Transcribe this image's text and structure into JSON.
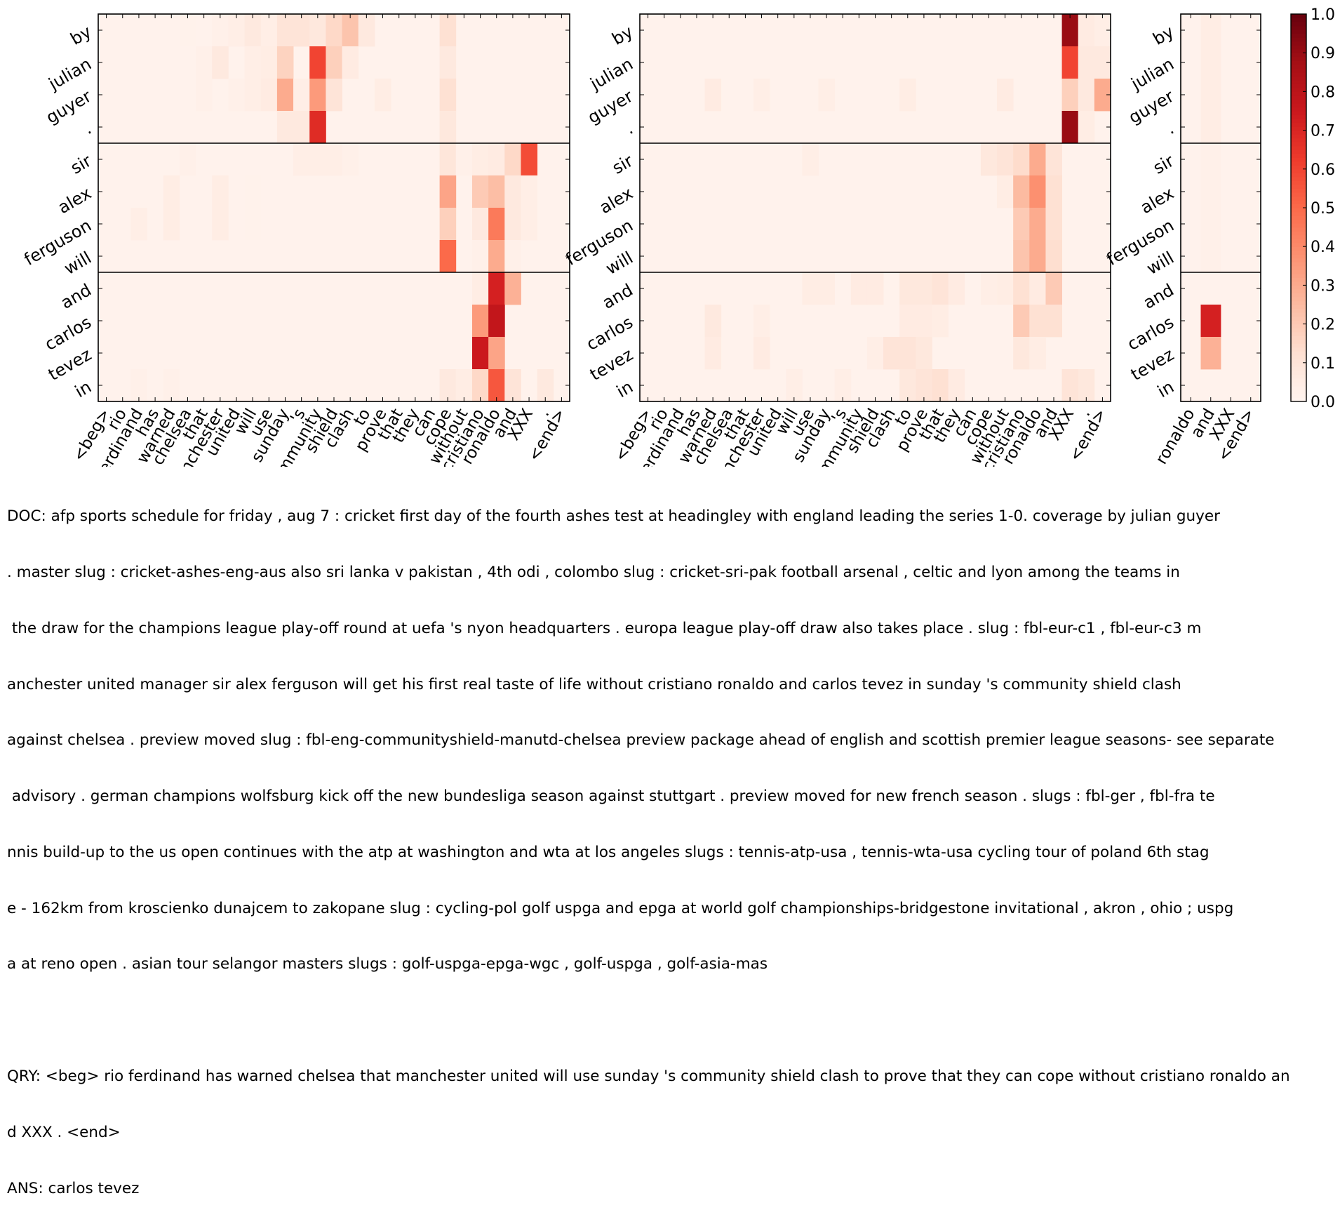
{
  "chart_data": {
    "type": "heatmap",
    "colorbar": {
      "min": 0.0,
      "max": 1.0,
      "ticks": [
        "0.0",
        "0.1",
        "0.2",
        "0.3",
        "0.4",
        "0.5",
        "0.6",
        "0.7",
        "0.8",
        "0.9",
        "1.0"
      ],
      "colormap": "Reds"
    },
    "row_groups": [
      [
        "by",
        "julian",
        "guyer",
        "."
      ],
      [
        "sir",
        "alex",
        "ferguson",
        "will"
      ],
      [
        "and",
        "carlos",
        "tevez",
        "in"
      ]
    ],
    "panels": [
      {
        "columns": [
          "<beg>",
          "rio",
          "ferdinand",
          "has",
          "warned",
          "chelsea",
          "that",
          "manchester",
          "united",
          "will",
          "use",
          "sunday",
          "'s",
          "community",
          "shield",
          "clash",
          "to",
          "prove",
          "that",
          "they",
          "can",
          "cope",
          "without",
          "cristiano",
          "ronaldo",
          "and",
          "XXX",
          ".",
          "<end>"
        ],
        "cells": [
          {
            "r": 0,
            "c": [
              [
                5,
                0.02
              ],
              [
                7,
                0.03
              ],
              [
                8,
                0.04
              ],
              [
                9,
                0.07
              ],
              [
                10,
                0.04
              ],
              [
                11,
                0.1
              ],
              [
                12,
                0.1
              ],
              [
                13,
                0.08
              ],
              [
                14,
                0.15
              ],
              [
                15,
                0.22
              ],
              [
                16,
                0.07
              ],
              [
                21,
                0.12
              ]
            ]
          },
          {
            "r": 1,
            "c": [
              [
                6,
                0.03
              ],
              [
                7,
                0.07
              ],
              [
                9,
                0.04
              ],
              [
                10,
                0.05
              ],
              [
                11,
                0.17
              ],
              [
                13,
                0.6
              ],
              [
                14,
                0.18
              ],
              [
                15,
                0.06
              ],
              [
                21,
                0.07
              ]
            ]
          },
          {
            "r": 2,
            "c": [
              [
                6,
                0.03
              ],
              [
                8,
                0.03
              ],
              [
                9,
                0.04
              ],
              [
                10,
                0.06
              ],
              [
                11,
                0.3
              ],
              [
                12,
                0.04
              ],
              [
                13,
                0.35
              ],
              [
                14,
                0.1
              ],
              [
                17,
                0.05
              ],
              [
                21,
                0.12
              ]
            ]
          },
          {
            "r": 3,
            "c": [
              [
                11,
                0.07
              ],
              [
                12,
                0.07
              ],
              [
                13,
                0.68
              ],
              [
                21,
                0.08
              ]
            ]
          },
          {
            "r": 4,
            "c": [
              [
                5,
                0.03
              ],
              [
                12,
                0.04
              ],
              [
                13,
                0.04
              ],
              [
                14,
                0.04
              ],
              [
                15,
                0.03
              ],
              [
                21,
                0.09
              ],
              [
                22,
                0.03
              ],
              [
                23,
                0.05
              ],
              [
                24,
                0.06
              ],
              [
                25,
                0.15
              ],
              [
                26,
                0.58
              ]
            ]
          },
          {
            "r": 5,
            "c": [
              [
                4,
                0.05
              ],
              [
                7,
                0.05
              ],
              [
                9,
                0.02
              ],
              [
                21,
                0.32
              ],
              [
                23,
                0.2
              ],
              [
                24,
                0.24
              ],
              [
                25,
                0.07
              ],
              [
                26,
                0.04
              ]
            ]
          },
          {
            "r": 6,
            "c": [
              [
                2,
                0.04
              ],
              [
                4,
                0.05
              ],
              [
                7,
                0.05
              ],
              [
                9,
                0.02
              ],
              [
                21,
                0.18
              ],
              [
                23,
                0.07
              ],
              [
                24,
                0.45
              ],
              [
                25,
                0.07
              ],
              [
                26,
                0.04
              ]
            ]
          },
          {
            "r": 7,
            "c": [
              [
                21,
                0.5
              ],
              [
                23,
                0.03
              ],
              [
                24,
                0.3
              ],
              [
                25,
                0.03
              ]
            ]
          },
          {
            "r": 8,
            "c": [
              [
                23,
                0.05
              ],
              [
                24,
                0.72
              ],
              [
                25,
                0.28
              ]
            ]
          },
          {
            "r": 9,
            "c": [
              [
                23,
                0.35
              ],
              [
                24,
                0.78
              ]
            ]
          },
          {
            "r": 10,
            "c": [
              [
                23,
                0.75
              ],
              [
                24,
                0.32
              ]
            ]
          },
          {
            "r": 11,
            "c": [
              [
                2,
                0.03
              ],
              [
                4,
                0.03
              ],
              [
                21,
                0.07
              ],
              [
                22,
                0.05
              ],
              [
                23,
                0.15
              ],
              [
                24,
                0.55
              ],
              [
                25,
                0.1
              ],
              [
                27,
                0.07
              ]
            ]
          }
        ]
      },
      {
        "columns": [
          "<beg>",
          "rio",
          "ferdinand",
          "has",
          "warned",
          "chelsea",
          "that",
          "manchester",
          "united",
          "will",
          "use",
          "sunday",
          "'s",
          "community",
          "shield",
          "clash",
          "to",
          "prove",
          "that",
          "they",
          "can",
          "cope",
          "without",
          "cristiano",
          "ronaldo",
          "and",
          "XXX",
          ".",
          "<end>"
        ],
        "cells": [
          {
            "r": 0,
            "c": [
              [
                26,
                0.9
              ],
              [
                27,
                0.06
              ],
              [
                28,
                0.04
              ]
            ]
          },
          {
            "r": 1,
            "c": [
              [
                26,
                0.6
              ],
              [
                27,
                0.07
              ],
              [
                28,
                0.07
              ]
            ]
          },
          {
            "r": 2,
            "c": [
              [
                4,
                0.06
              ],
              [
                7,
                0.04
              ],
              [
                11,
                0.04
              ],
              [
                16,
                0.05
              ],
              [
                22,
                0.06
              ],
              [
                26,
                0.18
              ],
              [
                27,
                0.07
              ],
              [
                28,
                0.3
              ]
            ]
          },
          {
            "r": 3,
            "c": [
              [
                26,
                0.9
              ],
              [
                27,
                0.05
              ]
            ]
          },
          {
            "r": 4,
            "c": [
              [
                10,
                0.04
              ],
              [
                21,
                0.08
              ],
              [
                22,
                0.1
              ],
              [
                23,
                0.14
              ],
              [
                24,
                0.3
              ],
              [
                25,
                0.1
              ]
            ]
          },
          {
            "r": 5,
            "c": [
              [
                22,
                0.05
              ],
              [
                23,
                0.25
              ],
              [
                24,
                0.38
              ],
              [
                25,
                0.12
              ]
            ]
          },
          {
            "r": 6,
            "c": [
              [
                23,
                0.2
              ],
              [
                24,
                0.3
              ],
              [
                25,
                0.12
              ]
            ]
          },
          {
            "r": 7,
            "c": [
              [
                23,
                0.22
              ],
              [
                24,
                0.3
              ],
              [
                25,
                0.13
              ]
            ]
          },
          {
            "r": 8,
            "c": [
              [
                10,
                0.05
              ],
              [
                11,
                0.05
              ],
              [
                13,
                0.06
              ],
              [
                14,
                0.06
              ],
              [
                16,
                0.08
              ],
              [
                17,
                0.08
              ],
              [
                18,
                0.1
              ],
              [
                19,
                0.06
              ],
              [
                21,
                0.04
              ],
              [
                22,
                0.05
              ],
              [
                23,
                0.12
              ],
              [
                24,
                0.06
              ],
              [
                25,
                0.2
              ]
            ]
          },
          {
            "r": 9,
            "c": [
              [
                4,
                0.07
              ],
              [
                7,
                0.04
              ],
              [
                16,
                0.06
              ],
              [
                17,
                0.06
              ],
              [
                18,
                0.05
              ],
              [
                23,
                0.2
              ],
              [
                24,
                0.12
              ],
              [
                25,
                0.12
              ]
            ]
          },
          {
            "r": 10,
            "c": [
              [
                4,
                0.06
              ],
              [
                7,
                0.06
              ],
              [
                14,
                0.04
              ],
              [
                15,
                0.1
              ],
              [
                16,
                0.1
              ],
              [
                17,
                0.08
              ],
              [
                23,
                0.08
              ],
              [
                24,
                0.05
              ]
            ]
          },
          {
            "r": 11,
            "c": [
              [
                9,
                0.04
              ],
              [
                12,
                0.04
              ],
              [
                16,
                0.08
              ],
              [
                17,
                0.1
              ],
              [
                18,
                0.12
              ],
              [
                19,
                0.06
              ],
              [
                26,
                0.1
              ],
              [
                27,
                0.08
              ]
            ]
          }
        ]
      },
      {
        "columns": [
          "ronaldo",
          "and",
          "XXX",
          "<end>"
        ],
        "cells": [
          {
            "r": 0,
            "c": [
              [
                1,
                0.05
              ]
            ]
          },
          {
            "r": 1,
            "c": [
              [
                1,
                0.05
              ]
            ]
          },
          {
            "r": 2,
            "c": [
              [
                1,
                0.05
              ]
            ]
          },
          {
            "r": 3,
            "c": [
              [
                1,
                0.05
              ]
            ]
          },
          {
            "r": 4,
            "c": [
              [
                1,
                0.03
              ]
            ]
          },
          {
            "r": 5,
            "c": [
              [
                1,
                0.03
              ]
            ]
          },
          {
            "r": 6,
            "c": [
              [
                1,
                0.03
              ]
            ]
          },
          {
            "r": 7,
            "c": [
              [
                1,
                0.03
              ]
            ]
          },
          {
            "r": 9,
            "c": [
              [
                1,
                0.72
              ]
            ]
          },
          {
            "r": 10,
            "c": [
              [
                1,
                0.28
              ]
            ]
          }
        ]
      }
    ]
  },
  "caption": {
    "doc_lines": [
      "DOC: afp sports schedule for friday , aug 7 : cricket first day of the fourth ashes test at headingley with england leading the series 1-0. coverage by julian guyer",
      ". master slug : cricket-ashes-eng-aus also sri lanka v pakistan , 4th odi , colombo slug : cricket-sri-pak football arsenal , celtic and lyon among the teams in",
      " the draw for the champions league play-off round at uefa 's nyon headquarters . europa league play-off draw also takes place . slug : fbl-eur-c1 , fbl-eur-c3 m",
      "anchester united manager sir alex ferguson will get his first real taste of life without cristiano ronaldo and carlos tevez in sunday 's community shield clash",
      "against chelsea . preview moved slug : fbl-eng-communityshield-manutd-chelsea preview package ahead of english and scottish premier league seasons- see separate",
      " advisory . german champions wolfsburg kick off the new bundesliga season against stuttgart . preview moved for new french season . slugs : fbl-ger , fbl-fra te",
      "nnis build-up to the us open continues with the atp at washington and wta at los angeles slugs : tennis-atp-usa , tennis-wta-usa cycling tour of poland 6th stag",
      "e - 162km from kroscienko dunajcem to zakopane slug : cycling-pol golf uspga and epga at world golf championships-bridgestone invitational , akron , ohio ; uspg",
      "a at reno open . asian tour selangor masters slugs : golf-uspga-epga-wgc , golf-uspga , golf-asia-mas"
    ],
    "qry_lines": [
      "QRY: <beg> rio ferdinand has warned chelsea that manchester united will use sunday 's community shield clash to prove that they can cope without cristiano ronaldo an",
      "d XXX . <end>"
    ],
    "ans": "ANS: carlos tevez"
  }
}
